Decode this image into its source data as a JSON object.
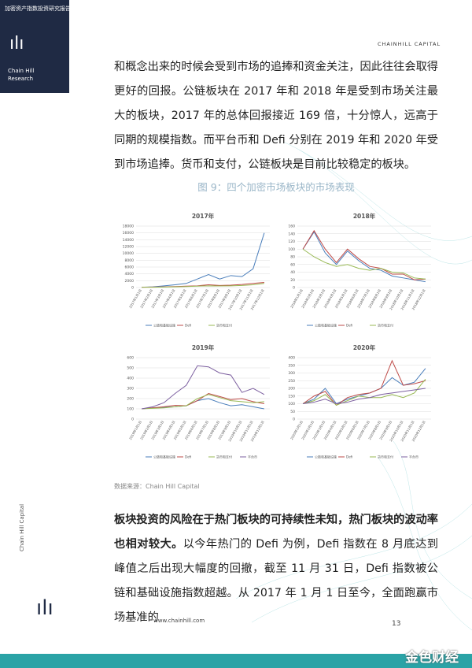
{
  "sidebar": {
    "report_title": "加密资产指数投资研究报告",
    "brand_line1": "Chain Hill",
    "brand_line2": "Research",
    "vertical_brand": "Chain Hill Capital"
  },
  "header": {
    "brand": "CHAINHILL CAPITAL"
  },
  "paragraph1": "和概念出来的时候会受到市场的追捧和资金关注，因此往往会取得更好的回报。公链板块在 2017 年和 2018 年是受到市场关注最大的板块，2017 年的总体回报接近 169 倍，十分惊人，远高于同期的规模指数。而平台币和 Defi 分别在 2019 年和 2020 年受到市场追捧。货币和支付，公链板块是目前比较稳定的板块。",
  "figure_caption": "图 9：四个加密市场板块的市场表现",
  "source": "数据来源：Chain Hill Capital",
  "paragraph2": {
    "lead": "板块投资的风险在于热门板块的可持续性未知，热门板块的波动率也相对较大。",
    "text": "以今年热门的 Defi 为例，Defi 指数在 8 月底达到峰值之后出现大幅度的回撤，截至 11 月 31 日，Defi 指数被公链和基础设施指数超越。从 2017 年 1 月 1 日至今，全面跑赢市场基准的"
  },
  "footer": {
    "url": "www.chainhill.com",
    "page": "13",
    "watermark": "金色财经"
  },
  "chart_data": [
    {
      "type": "line",
      "title": "2017年",
      "categories": [
        "2017年1月1日",
        "2017年2月1日",
        "2017年3月1日",
        "2017年4月1日",
        "2017年5月1日",
        "2017年6月1日",
        "2017年7月1日",
        "2017年8月1日",
        "2017年9月1日",
        "2017年10月1日",
        "2017年11月1日",
        "2017年12月1日"
      ],
      "series": [
        {
          "name": "公链和基础设施",
          "color": "#4a7ebb",
          "values": [
            100,
            200,
            500,
            800,
            1200,
            2500,
            3800,
            2500,
            3500,
            3200,
            5500,
            16000
          ]
        },
        {
          "name": "Defi",
          "color": "#be4b48",
          "values": [
            100,
            150,
            200,
            300,
            400,
            500,
            800,
            600,
            700,
            900,
            1200,
            1500
          ]
        },
        {
          "name": "货币和支付",
          "color": "#98b954",
          "values": [
            100,
            100,
            150,
            200,
            300,
            400,
            500,
            450,
            500,
            600,
            800,
            1200
          ]
        }
      ],
      "ylim": [
        0,
        18000
      ],
      "yticks": [
        0,
        2000,
        4000,
        6000,
        8000,
        10000,
        12000,
        14000,
        16000,
        18000
      ],
      "grid": true
    },
    {
      "type": "line",
      "title": "2018年",
      "categories": [
        "2018年1月1日",
        "2018年2月1日",
        "2018年3月1日",
        "2018年4月1日",
        "2018年5月1日",
        "2018年6月1日",
        "2018年7月1日",
        "2018年8月1日",
        "2018年9月1日",
        "2018年10月1日",
        "2018年11月1日",
        "2018年12月1日"
      ],
      "series": [
        {
          "name": "公链和基础设施",
          "color": "#4a7ebb",
          "values": [
            100,
            145,
            90,
            60,
            95,
            70,
            50,
            45,
            30,
            25,
            20,
            15
          ]
        },
        {
          "name": "Defi",
          "color": "#be4b48",
          "values": [
            100,
            148,
            100,
            65,
            100,
            75,
            55,
            50,
            35,
            35,
            20,
            22
          ]
        },
        {
          "name": "货币和支付",
          "color": "#98b954",
          "values": [
            100,
            80,
            65,
            55,
            60,
            50,
            45,
            50,
            40,
            38,
            25,
            22
          ]
        }
      ],
      "ylim": [
        0,
        160
      ],
      "yticks": [
        0,
        20,
        40,
        60,
        80,
        100,
        120,
        140,
        160
      ],
      "grid": true
    },
    {
      "type": "line",
      "title": "2019年",
      "categories": [
        "2019年1月1日",
        "2019年2月1日",
        "2019年3月1日",
        "2019年4月1日",
        "2019年5月1日",
        "2019年6月1日",
        "2019年7月1日",
        "2019年8月1日",
        "2019年9月1日",
        "2019年10月1日",
        "2019年11月1日",
        "2019年12月1日"
      ],
      "series": [
        {
          "name": "公链和基础设施",
          "color": "#4a7ebb",
          "values": [
            100,
            110,
            115,
            120,
            130,
            180,
            200,
            160,
            130,
            140,
            120,
            100
          ]
        },
        {
          "name": "Defi",
          "color": "#be4b48",
          "values": [
            100,
            110,
            120,
            135,
            130,
            180,
            250,
            220,
            190,
            200,
            170,
            150
          ]
        },
        {
          "name": "货币和支付",
          "color": "#98b954",
          "values": [
            100,
            105,
            110,
            120,
            130,
            200,
            240,
            210,
            180,
            170,
            160,
            170
          ]
        },
        {
          "name": "平台币",
          "color": "#7d60a0",
          "values": [
            100,
            120,
            160,
            250,
            330,
            520,
            510,
            450,
            430,
            260,
            300,
            240
          ]
        }
      ],
      "ylim": [
        0,
        600
      ],
      "yticks": [
        0,
        100,
        200,
        300,
        400,
        500,
        600
      ],
      "grid": true
    },
    {
      "type": "line",
      "title": "2020年",
      "categories": [
        "2020年1月1日",
        "2020年2月1日",
        "2020年3月1日",
        "2020年4月1日",
        "2020年5月1日",
        "2020年6月1日",
        "2020年7月1日",
        "2020年8月1日",
        "2020年9月1日",
        "2020年10月1日",
        "2020年11月1日",
        "2020年12月1日"
      ],
      "series": [
        {
          "name": "公链和基础设施",
          "color": "#4a7ebb",
          "values": [
            100,
            130,
            200,
            100,
            130,
            150,
            170,
            200,
            270,
            220,
            240,
            330
          ]
        },
        {
          "name": "Defi",
          "color": "#be4b48",
          "values": [
            100,
            150,
            180,
            90,
            140,
            160,
            170,
            200,
            380,
            220,
            230,
            250
          ]
        },
        {
          "name": "货币和支付",
          "color": "#98b954",
          "values": [
            100,
            120,
            160,
            90,
            120,
            150,
            140,
            140,
            160,
            140,
            170,
            260
          ]
        },
        {
          "name": "平台币",
          "color": "#7d60a0",
          "values": [
            100,
            110,
            130,
            100,
            110,
            130,
            140,
            160,
            170,
            180,
            190,
            200
          ]
        }
      ],
      "ylim": [
        0,
        400
      ],
      "yticks": [
        0,
        50,
        100,
        150,
        200,
        250,
        300,
        350,
        400
      ],
      "grid": true
    }
  ]
}
